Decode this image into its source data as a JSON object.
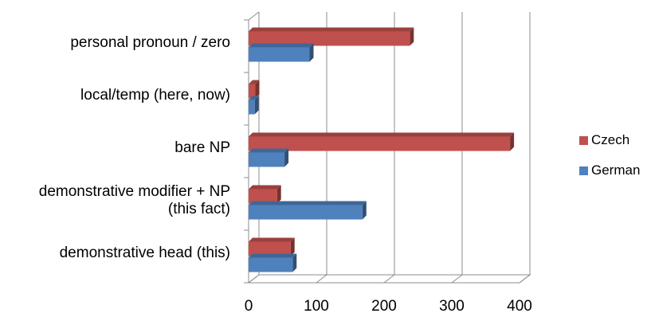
{
  "chart_data": {
    "type": "bar",
    "orientation": "horizontal",
    "style": "3d-clustered",
    "title": "",
    "xlabel": "",
    "ylabel": "",
    "categories": [
      [
        "demonstrative head (this)"
      ],
      [
        "demonstrative modifier + NP",
        "(this fact)"
      ],
      [
        "bare NP"
      ],
      [
        "local/temp (here, now)"
      ],
      [
        "personal pronoun / zero"
      ]
    ],
    "series": [
      {
        "name": "German",
        "color": "#4f81bd",
        "values": [
          65,
          168,
          53,
          9,
          90
        ]
      },
      {
        "name": "Czech",
        "color": "#c0504d",
        "values": [
          62,
          42,
          386,
          10,
          238
        ]
      }
    ],
    "xlim": [
      0,
      400
    ],
    "x_ticks": [
      0,
      100,
      200,
      300,
      400
    ],
    "grid": "vertical",
    "legend_position": "right",
    "legend_order": [
      "Czech",
      "German"
    ]
  }
}
